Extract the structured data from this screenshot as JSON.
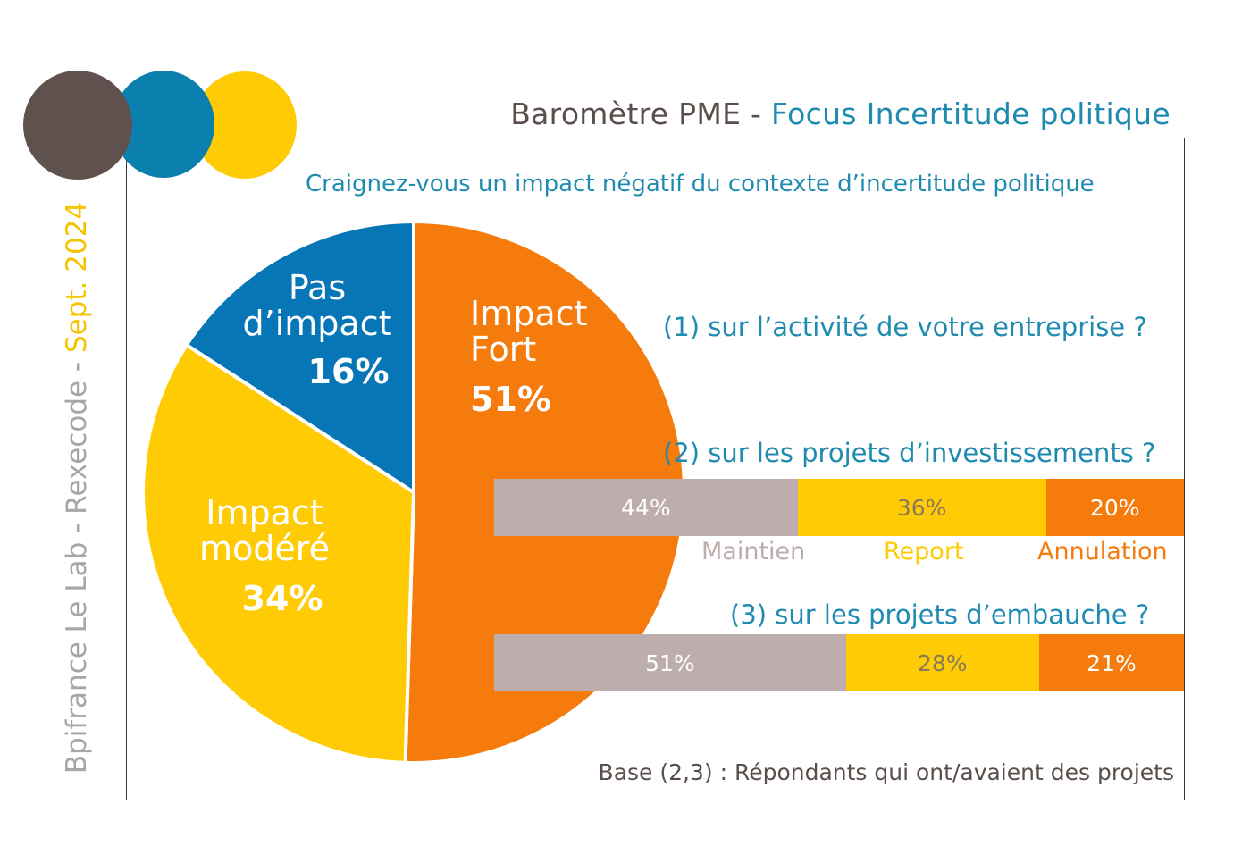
{
  "header": {
    "title_part1": "Baromètre PME - ",
    "title_part2": "Focus Incertitude politique"
  },
  "side_text": {
    "source": "Bpifrance Le Lab - Rexecode - ",
    "date": "Sept. 2024"
  },
  "question": "Craignez-vous un impact négatif du contexte d’incertitude politique",
  "sub_questions": {
    "q1": "(1) sur l’activité de votre entreprise ?",
    "q2": "(2) sur les projets d’investissements ?",
    "q3": "(3) sur les projets d’embauche ?"
  },
  "legend": {
    "maintien": "Maintien",
    "report": "Report",
    "annulation": "Annulation"
  },
  "footnote": "Base (2,3) : Répondants qui ont/avaient des projets",
  "colors": {
    "dark": "#5f514e",
    "blue": "#0776b7",
    "teal": "#0b7fae",
    "yellow": "#ffcb05",
    "orange": "#f47b0c",
    "grey": "#bdadac"
  },
  "chart_data": [
    {
      "type": "pie",
      "title": "(1) sur l’activité de votre entreprise ?",
      "slices": [
        {
          "label": "Impact Fort",
          "label_lines": [
            "Impact",
            "Fort"
          ],
          "value": 51,
          "display": "51%",
          "color": "#f47b0c"
        },
        {
          "label": "Impact modéré",
          "label_lines": [
            "Impact",
            "modéré"
          ],
          "value": 34,
          "display": "34%",
          "color": "#ffcb05"
        },
        {
          "label": "Pas d’impact",
          "label_lines": [
            "Pas",
            "d’impact"
          ],
          "value": 16,
          "display": "16%",
          "color": "#0776b7"
        }
      ]
    },
    {
      "type": "bar",
      "stacked": true,
      "title": "(2) sur les projets d’investissements ?",
      "categories": [
        "Maintien",
        "Report",
        "Annulation"
      ],
      "values": [
        44,
        36,
        20
      ],
      "labels": [
        "44%",
        "36%",
        "20%"
      ],
      "colors": [
        "#bdadac",
        "#ffcb05",
        "#f47b0c"
      ]
    },
    {
      "type": "bar",
      "stacked": true,
      "title": "(3) sur les projets d’embauche ?",
      "categories": [
        "Maintien",
        "Report",
        "Annulation"
      ],
      "values": [
        51,
        28,
        21
      ],
      "labels": [
        "51%",
        "28%",
        "21%"
      ],
      "colors": [
        "#bdadac",
        "#ffcb05",
        "#f47b0c"
      ]
    }
  ]
}
